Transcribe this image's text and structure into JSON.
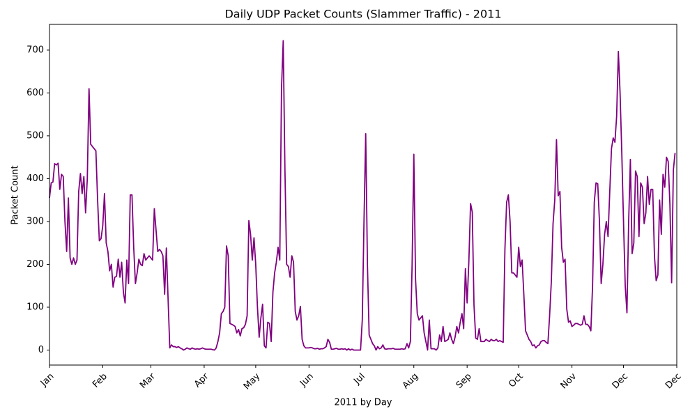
{
  "chart_data": {
    "type": "line",
    "title": "Daily UDP Packet Counts (Slammer Traffic) - 2011",
    "xlabel": "2011 by Day",
    "ylabel": "Packet Count",
    "color": "#800080",
    "xlim": [
      0,
      365
    ],
    "ylim": [
      -35,
      760
    ],
    "yticks": [
      0,
      100,
      200,
      300,
      400,
      500,
      600,
      700
    ],
    "xticks": [
      {
        "value": 0,
        "label": "Jan"
      },
      {
        "value": 31,
        "label": "Feb"
      },
      {
        "value": 59,
        "label": "Mar"
      },
      {
        "value": 90,
        "label": "Apr"
      },
      {
        "value": 120,
        "label": "May"
      },
      {
        "value": 151,
        "label": "Jun"
      },
      {
        "value": 181,
        "label": "Jul"
      },
      {
        "value": 212,
        "label": "Aug"
      },
      {
        "value": 243,
        "label": "Sep"
      },
      {
        "value": 273,
        "label": "Oct"
      },
      {
        "value": 304,
        "label": "Nov"
      },
      {
        "value": 334,
        "label": "Dec"
      },
      {
        "value": 365,
        "label": "Dec"
      }
    ],
    "x": [
      0,
      1,
      2,
      3,
      4,
      5,
      6,
      7,
      8,
      9,
      10,
      11,
      12,
      13,
      14,
      15,
      16,
      17,
      18,
      19,
      20,
      21,
      22,
      23,
      24,
      25,
      26,
      27,
      28,
      29,
      30,
      31,
      32,
      33,
      34,
      35,
      36,
      37,
      38,
      39,
      40,
      41,
      42,
      43,
      44,
      45,
      46,
      47,
      48,
      49,
      50,
      51,
      52,
      53,
      54,
      55,
      56,
      57,
      58,
      59,
      60,
      61,
      62,
      63,
      64,
      65,
      66,
      67,
      68,
      69,
      70,
      71,
      72,
      73,
      74,
      75,
      76,
      77,
      78,
      79,
      80,
      81,
      82,
      83,
      84,
      85,
      86,
      87,
      88,
      89,
      90,
      91,
      92,
      93,
      94,
      95,
      96,
      97,
      98,
      99,
      100,
      101,
      102,
      103,
      104,
      105,
      106,
      107,
      108,
      109,
      110,
      111,
      112,
      113,
      114,
      115,
      116,
      117,
      118,
      119,
      120,
      121,
      122,
      123,
      124,
      125,
      126,
      127,
      128,
      129,
      130,
      131,
      132,
      133,
      134,
      135,
      136,
      137,
      138,
      139,
      140,
      141,
      142,
      143,
      144,
      145,
      146,
      147,
      148,
      149,
      150,
      151,
      152,
      153,
      154,
      155,
      156,
      157,
      158,
      159,
      160,
      161,
      162,
      163,
      164,
      165,
      166,
      167,
      168,
      169,
      170,
      171,
      172,
      173,
      174,
      175,
      176,
      177,
      178,
      179,
      180,
      181,
      182,
      183,
      184,
      185,
      186,
      187,
      188,
      189,
      190,
      191,
      192,
      193,
      194,
      195,
      196,
      197,
      198,
      199,
      200,
      201,
      202,
      203,
      204,
      205,
      206,
      207,
      208,
      209,
      210,
      211,
      212,
      213,
      214,
      215,
      216,
      217,
      218,
      219,
      220,
      221,
      222,
      223,
      224,
      225,
      226,
      227,
      228,
      229,
      230,
      231,
      232,
      233,
      234,
      235,
      236,
      237,
      238,
      239,
      240,
      241,
      242,
      243,
      244,
      245,
      246,
      247,
      248,
      249,
      250,
      251,
      252,
      253,
      254,
      255,
      256,
      257,
      258,
      259,
      260,
      261,
      262,
      263,
      264,
      265,
      266,
      267,
      268,
      269,
      270,
      271,
      272,
      273,
      274,
      275,
      276,
      277,
      278,
      279,
      280,
      281,
      282,
      283,
      284,
      285,
      286,
      287,
      288,
      289,
      290,
      291,
      292,
      293,
      294,
      295,
      296,
      297,
      298,
      299,
      300,
      301,
      302,
      303,
      304,
      305,
      306,
      307,
      308,
      309,
      310,
      311,
      312,
      313,
      314,
      315,
      316,
      317,
      318,
      319,
      320,
      321,
      322,
      323,
      324,
      325,
      326,
      327,
      328,
      329,
      330,
      331,
      332,
      333,
      334,
      335,
      336,
      337,
      338,
      339,
      340,
      341,
      342,
      343,
      344,
      345,
      346,
      347,
      348,
      349,
      350,
      351,
      352,
      353,
      354,
      355,
      356,
      357,
      358,
      359,
      360,
      361,
      362,
      363,
      364
    ],
    "values": [
      355,
      390,
      392,
      435,
      432,
      436,
      375,
      410,
      405,
      300,
      230,
      355,
      215,
      200,
      215,
      200,
      210,
      370,
      412,
      365,
      405,
      320,
      400,
      610,
      480,
      475,
      470,
      465,
      350,
      255,
      260,
      290,
      365,
      250,
      230,
      185,
      200,
      147,
      170,
      172,
      212,
      170,
      205,
      135,
      110,
      210,
      155,
      362,
      362,
      240,
      155,
      180,
      212,
      200,
      197,
      225,
      210,
      215,
      220,
      215,
      210,
      330,
      280,
      230,
      235,
      230,
      220,
      130,
      238,
      120,
      5,
      12,
      8,
      8,
      6,
      8,
      5,
      3,
      0,
      2,
      5,
      3,
      2,
      5,
      3,
      2,
      3,
      2,
      3,
      5,
      3,
      2,
      2,
      2,
      2,
      1,
      0,
      5,
      20,
      40,
      85,
      90,
      100,
      243,
      220,
      62,
      60,
      58,
      55,
      40,
      48,
      33,
      50,
      52,
      60,
      80,
      302,
      270,
      210,
      262,
      200,
      100,
      30,
      75,
      107,
      10,
      5,
      65,
      62,
      20,
      135,
      180,
      205,
      240,
      210,
      610,
      722,
      420,
      200,
      195,
      170,
      220,
      205,
      90,
      70,
      80,
      102,
      25,
      10,
      5,
      5,
      5,
      6,
      5,
      3,
      3,
      4,
      2,
      3,
      3,
      5,
      8,
      25,
      18,
      2,
      2,
      3,
      4,
      2,
      2,
      3,
      2,
      3,
      0,
      3,
      0,
      2,
      0,
      0,
      0,
      0,
      0,
      70,
      300,
      505,
      200,
      35,
      25,
      15,
      10,
      0,
      8,
      3,
      5,
      12,
      3,
      2,
      3,
      3,
      3,
      4,
      2,
      2,
      2,
      2,
      3,
      2,
      3,
      15,
      5,
      20,
      200,
      457,
      165,
      85,
      70,
      75,
      80,
      40,
      20,
      0,
      70,
      3,
      3,
      3,
      0,
      5,
      35,
      20,
      55,
      20,
      22,
      25,
      40,
      25,
      15,
      30,
      55,
      40,
      65,
      85,
      50,
      190,
      110,
      205,
      342,
      322,
      105,
      28,
      25,
      50,
      20,
      20,
      20,
      25,
      22,
      20,
      25,
      22,
      22,
      25,
      20,
      22,
      20,
      18,
      235,
      345,
      362,
      300,
      180,
      180,
      175,
      170,
      240,
      195,
      210,
      130,
      45,
      35,
      25,
      20,
      10,
      12,
      5,
      10,
      12,
      20,
      22,
      22,
      18,
      15,
      80,
      160,
      295,
      350,
      491,
      360,
      370,
      240,
      205,
      212,
      95,
      65,
      68,
      55,
      58,
      62,
      62,
      60,
      58,
      60,
      80,
      60,
      60,
      55,
      45,
      150,
      345,
      390,
      388,
      300,
      155,
      200,
      270,
      300,
      265,
      370,
      470,
      495,
      485,
      545,
      697,
      600,
      460,
      300,
      150,
      87,
      300,
      445,
      225,
      250,
      418,
      405,
      265,
      390,
      380,
      295,
      320,
      405,
      340,
      375,
      375,
      220,
      162,
      175,
      350,
      270,
      410,
      380,
      450,
      440,
      340,
      157,
      420,
      460
    ]
  }
}
